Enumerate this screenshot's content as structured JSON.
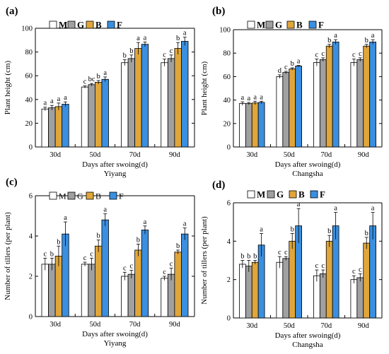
{
  "colors": {
    "M": "#ffffff",
    "G": "#a0a0a0",
    "B": "#e0a63a",
    "F": "#3a8fe0",
    "stroke": "#000000"
  },
  "chart_data": [
    {
      "panel": "(a)",
      "type": "bar",
      "location": "Yiyang",
      "xlabel": "Days after swoing(d)",
      "ylabel": "Plant height (cm)",
      "ylim": [
        0,
        100
      ],
      "yticks": [
        0,
        20,
        40,
        60,
        80,
        100
      ],
      "categories": [
        "30d",
        "50d",
        "70d",
        "90d"
      ],
      "legend": {
        "placement": "top",
        "bold": true
      },
      "series": [
        {
          "name": "M",
          "values": [
            32,
            50.5,
            71,
            71
          ],
          "errors": [
            1.5,
            1,
            2.5,
            3
          ],
          "letters": [
            "a",
            "c",
            "b",
            "c"
          ]
        },
        {
          "name": "G",
          "values": [
            33,
            52.5,
            74.5,
            74.5
          ],
          "errors": [
            2,
            1,
            3,
            3
          ],
          "letters": [
            "a",
            "bc",
            "b",
            "c"
          ]
        },
        {
          "name": "B",
          "values": [
            34,
            54.5,
            83,
            83
          ],
          "errors": [
            3,
            1.5,
            5,
            5
          ],
          "letters": [
            "a",
            "b",
            "a",
            "b"
          ]
        },
        {
          "name": "F",
          "values": [
            36,
            57,
            86.5,
            89
          ],
          "errors": [
            2,
            2,
            2,
            3.5
          ],
          "letters": [
            "a",
            "a",
            "a",
            "a"
          ]
        }
      ]
    },
    {
      "panel": "(b)",
      "type": "bar",
      "location": "Changsha",
      "xlabel": "Days after swoing(d)",
      "ylabel": "Plant height (cm)",
      "ylim": [
        0,
        100
      ],
      "yticks": [
        0,
        20,
        40,
        60,
        80,
        100
      ],
      "categories": [
        "30d",
        "50d",
        "70d",
        "90d"
      ],
      "legend": {
        "placement": "top",
        "bold": true
      },
      "series": [
        {
          "name": "M",
          "values": [
            37,
            60,
            72,
            72
          ],
          "errors": [
            1.5,
            1.5,
            3,
            3
          ],
          "letters": [
            "a",
            "d",
            "c",
            "c"
          ]
        },
        {
          "name": "G",
          "values": [
            37,
            63.5,
            74.5,
            74.5
          ],
          "errors": [
            1,
            1,
            1.5,
            1.5
          ],
          "letters": [
            "a",
            "c",
            "c",
            "c"
          ]
        },
        {
          "name": "B",
          "values": [
            37.5,
            66.5,
            86,
            86
          ],
          "errors": [
            1.5,
            1,
            1.5,
            1.5
          ],
          "letters": [
            "a",
            "b",
            "b",
            "b"
          ]
        },
        {
          "name": "F",
          "values": [
            38,
            69,
            89.5,
            89.5
          ],
          "errors": [
            1,
            0.5,
            2,
            2
          ],
          "letters": [
            "a",
            "a",
            "a",
            "a"
          ]
        }
      ]
    },
    {
      "panel": "(c)",
      "type": "bar",
      "location": "Yiyang",
      "xlabel": "Days after swoing(d)",
      "ylabel": "Number of tillers (per plant)",
      "ylim": [
        0,
        6
      ],
      "yticks": [
        0,
        2,
        4,
        6
      ],
      "categories": [
        "30d",
        "50d",
        "70d",
        "90d"
      ],
      "legend": {
        "placement": "top",
        "bold": false
      },
      "series": [
        {
          "name": "M",
          "values": [
            2.6,
            2.6,
            2.0,
            1.9
          ],
          "errors": [
            0.3,
            0.1,
            0.2,
            0.1
          ],
          "letters": [
            "c",
            "c",
            "c",
            "c"
          ]
        },
        {
          "name": "G",
          "values": [
            2.6,
            2.6,
            2.1,
            2.1
          ],
          "errors": [
            0.3,
            0.3,
            0.2,
            0.3
          ],
          "letters": [
            "b",
            "c",
            "c",
            "c"
          ]
        },
        {
          "name": "B",
          "values": [
            3.0,
            3.5,
            3.3,
            3.2
          ],
          "errors": [
            0.5,
            0.3,
            0.3,
            0.1
          ],
          "letters": [
            "b",
            "b",
            "b",
            "b"
          ]
        },
        {
          "name": "F",
          "values": [
            4.1,
            4.8,
            4.3,
            4.1
          ],
          "errors": [
            0.6,
            0.3,
            0.2,
            0.3
          ],
          "letters": [
            "a",
            "a",
            "a",
            "a"
          ]
        }
      ]
    },
    {
      "panel": "(d)",
      "type": "bar",
      "location": "Changsha",
      "xlabel": "Days after swoing(d)",
      "ylabel": "Number of tillers (per plant)",
      "ylim": [
        0,
        6
      ],
      "yticks": [
        0,
        2,
        4,
        6
      ],
      "categories": [
        "30d",
        "50d",
        "70d",
        "90d"
      ],
      "legend": {
        "placement": "top",
        "bold": true
      },
      "series": [
        {
          "name": "M",
          "values": [
            2.8,
            2.9,
            2.2,
            2.0
          ],
          "errors": [
            0.2,
            0.3,
            0.3,
            0.2
          ],
          "letters": [
            "b",
            "c",
            "c",
            "c"
          ]
        },
        {
          "name": "G",
          "values": [
            2.7,
            3.1,
            2.3,
            2.1
          ],
          "errors": [
            0.3,
            0.1,
            0.2,
            0.2
          ],
          "letters": [
            "b",
            "c",
            "c",
            "c"
          ]
        },
        {
          "name": "B",
          "values": [
            2.9,
            4.0,
            4.0,
            3.9
          ],
          "errors": [
            0.1,
            0.4,
            0.3,
            0.3
          ],
          "letters": [
            "b",
            "b",
            "b",
            "b"
          ]
        },
        {
          "name": "F",
          "values": [
            3.8,
            4.8,
            4.8,
            4.8
          ],
          "errors": [
            0.6,
            0.9,
            0.7,
            0.7
          ],
          "letters": [
            "a",
            "a",
            "a",
            "a"
          ]
        }
      ]
    }
  ]
}
